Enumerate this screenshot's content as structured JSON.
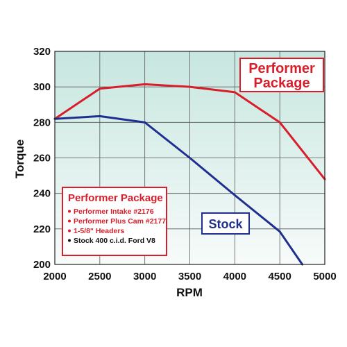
{
  "chart_data": {
    "type": "line",
    "xlabel": "RPM",
    "ylabel": "Torque",
    "xlim": [
      2000,
      5000
    ],
    "ylim": [
      200,
      320
    ],
    "xticks": [
      2000,
      2500,
      3000,
      3500,
      4000,
      4500,
      5000
    ],
    "yticks": [
      200,
      220,
      240,
      260,
      280,
      300,
      320
    ],
    "grid": true,
    "series": [
      {
        "name": "Performer Package",
        "color": "#d81e2a",
        "x": [
          2000,
          2500,
          3000,
          3500,
          4000,
          4500,
          5000
        ],
        "y": [
          282,
          299,
          301.5,
          300,
          297,
          280,
          248
        ]
      },
      {
        "name": "Stock",
        "color": "#1f2f8f",
        "x": [
          2000,
          2500,
          3000,
          3500,
          4000,
          4500,
          4750
        ],
        "y": [
          282,
          283.5,
          280,
          260,
          239,
          218.5,
          200
        ]
      }
    ],
    "annotations": {
      "performer_callout": [
        "Performer",
        "Package"
      ],
      "stock_callout": "Stock"
    },
    "legend": {
      "placement": "bottom-left",
      "title": "Performer Package",
      "items": [
        {
          "text": "Performer Intake #2176",
          "color": "#d81e2a"
        },
        {
          "text": "Performer Plus Cam #2177",
          "color": "#d81e2a"
        },
        {
          "text": "1-5/8\" Headers",
          "color": "#d81e2a"
        },
        {
          "text": "Stock 400 c.i.d. Ford V8",
          "color": "#111111"
        }
      ]
    }
  }
}
